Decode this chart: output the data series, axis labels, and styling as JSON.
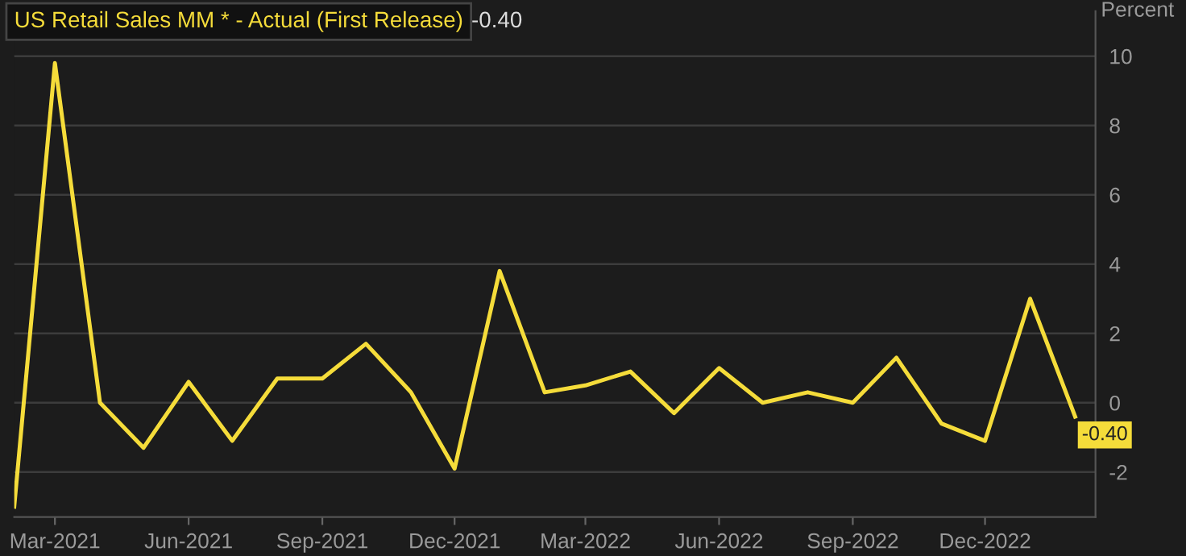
{
  "chart_data": {
    "type": "line",
    "x": [
      "2021-02",
      "2021-03",
      "2021-04",
      "2021-05",
      "2021-06",
      "2021-07",
      "2021-08",
      "2021-09",
      "2021-10",
      "2021-11",
      "2021-12",
      "2022-01",
      "2022-02",
      "2022-03",
      "2022-04",
      "2022-05",
      "2022-06",
      "2022-07",
      "2022-08",
      "2022-09",
      "2022-10",
      "2022-11",
      "2022-12",
      "2023-01",
      "2023-02"
    ],
    "series": [
      {
        "name": "US Retail Sales MM * - Actual (First Release)",
        "color": "#f5dc3a",
        "values": [
          -3.0,
          9.8,
          0.0,
          -1.3,
          0.6,
          -1.1,
          0.7,
          0.7,
          1.7,
          0.3,
          -1.9,
          3.8,
          0.3,
          0.5,
          0.9,
          -0.3,
          1.0,
          0.0,
          0.3,
          0.0,
          1.3,
          -0.6,
          -1.1,
          3.0,
          -0.4
        ],
        "value_labels": [
          null,
          null,
          null,
          null,
          null,
          null,
          null,
          null,
          null,
          null,
          null,
          null,
          null,
          null,
          null,
          null,
          null,
          null,
          null,
          null,
          null,
          null,
          null,
          null,
          "-0.40"
        ]
      }
    ],
    "annotations": [
      "-0.40"
    ],
    "ylabel": "Percent",
    "xlim": [
      "2021-02-01",
      "2023-02-15"
    ],
    "xticks": [
      {
        "value": "2021-03",
        "label": "Mar-2021"
      },
      {
        "value": "2021-06",
        "label": "Jun-2021"
      },
      {
        "value": "2021-09",
        "label": "Sep-2021"
      },
      {
        "value": "2021-12",
        "label": "Dec-2021"
      },
      {
        "value": "2022-03",
        "label": "Mar-2022"
      },
      {
        "value": "2022-06",
        "label": "Jun-2022"
      },
      {
        "value": "2022-09",
        "label": "Sep-2022"
      },
      {
        "value": "2022-12",
        "label": "Dec-2022"
      }
    ],
    "ylim": [
      -3.3,
      11.3
    ],
    "yticks": [
      -2,
      0,
      2,
      4,
      6,
      8,
      10
    ],
    "grid": "y",
    "legend": "top left",
    "marker": "none",
    "line_style": "solid"
  }
}
